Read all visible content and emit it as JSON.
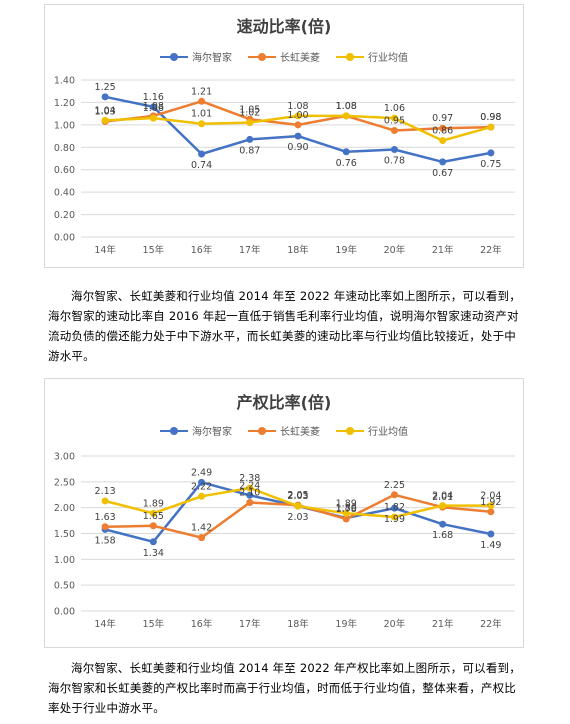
{
  "chart_data": [
    {
      "type": "line",
      "title": "速动比率(倍)",
      "categories": [
        "14年",
        "15年",
        "16年",
        "17年",
        "18年",
        "19年",
        "20年",
        "21年",
        "22年"
      ],
      "ylim": [
        0,
        1.4
      ],
      "yticks": [
        "0.00",
        "0.20",
        "0.40",
        "0.60",
        "0.80",
        "1.00",
        "1.20",
        "1.40"
      ],
      "grid": true,
      "legend": "top",
      "series": [
        {
          "name": "海尔智家",
          "color": "#4472c4",
          "values": [
            1.25,
            1.16,
            0.74,
            0.87,
            0.9,
            0.76,
            0.78,
            0.67,
            0.75
          ]
        },
        {
          "name": "长虹美菱",
          "color": "#ed7d31",
          "values": [
            1.03,
            1.08,
            1.21,
            1.05,
            1.0,
            1.08,
            0.95,
            0.97,
            0.98
          ]
        },
        {
          "name": "行业均值",
          "color": "#f0c000",
          "values": [
            1.04,
            1.06,
            1.01,
            1.02,
            1.08,
            1.08,
            1.06,
            0.86,
            0.98
          ]
        }
      ]
    },
    {
      "type": "line",
      "title": "产权比率(倍)",
      "categories": [
        "14年",
        "15年",
        "16年",
        "17年",
        "18年",
        "19年",
        "20年",
        "21年",
        "22年"
      ],
      "ylim": [
        0,
        3
      ],
      "yticks": [
        "0.00",
        "0.50",
        "1.00",
        "1.50",
        "2.00",
        "2.50",
        "3.00"
      ],
      "grid": true,
      "legend": "top",
      "series": [
        {
          "name": "海尔智家",
          "color": "#4472c4",
          "values": [
            1.58,
            1.34,
            2.49,
            2.24,
            2.03,
            1.8,
            1.99,
            1.68,
            1.49
          ]
        },
        {
          "name": "长虹美菱",
          "color": "#ed7d31",
          "values": [
            1.63,
            1.65,
            1.42,
            2.1,
            2.05,
            1.78,
            2.25,
            2.01,
            1.92
          ]
        },
        {
          "name": "行业均值",
          "color": "#f0c000",
          "values": [
            2.13,
            1.89,
            2.22,
            2.38,
            2.03,
            1.89,
            1.82,
            2.04,
            2.04
          ]
        }
      ]
    }
  ],
  "paragraphs": {
    "p1": "海尔智家、长虹美菱和行业均值 2014 年至 2022 年速动比率如上图所示，可以看到，海尔智家的速动比率自 2016 年起一直低于销售毛利率行业均值，说明海尔智家速动资产对流动负债的偿还能力处于中下游水平，而长虹美菱的速动比率与行业均值比较接近，处于中游水平。",
    "p2": "海尔智家、长虹美菱和行业均值 2014 年至 2022 年产权比率如上图所示，可以看到，海尔智家和长虹美菱的产权比率时而高于行业均值，时而低于行业均值，整体来看，产权比率处于行业中游水平。"
  }
}
